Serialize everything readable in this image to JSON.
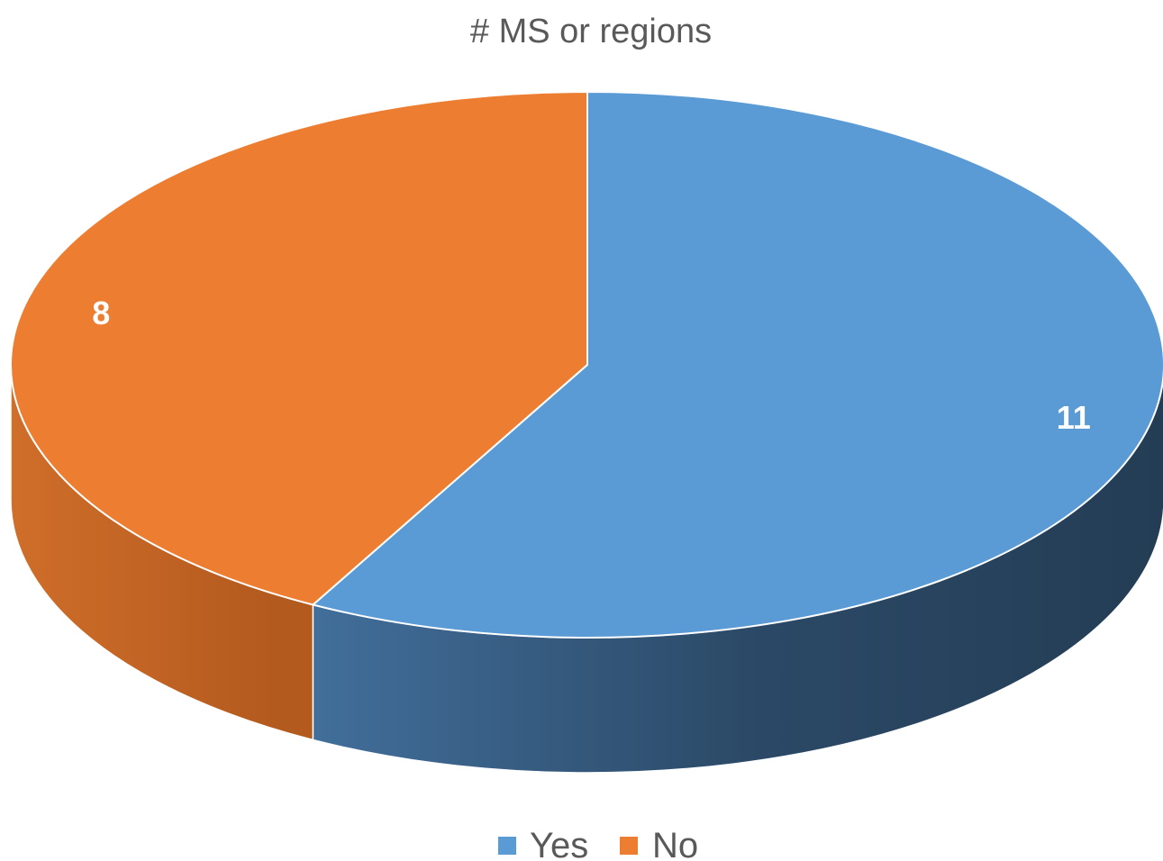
{
  "chart_data": {
    "type": "pie",
    "title": "# MS or regions",
    "three_d": true,
    "categories": [
      "Yes",
      "No"
    ],
    "values": [
      11,
      8
    ],
    "colors": [
      "#5B9BD5",
      "#ED7D31"
    ],
    "side_colors": {
      "Yes": [
        "#4472A0",
        "#243D55"
      ],
      "No": [
        "#B35A1F",
        "#D06E2A"
      ]
    },
    "data_labels": [
      "11",
      "8"
    ],
    "legend": {
      "position": "bottom",
      "entries": [
        "Yes",
        "No"
      ]
    }
  }
}
